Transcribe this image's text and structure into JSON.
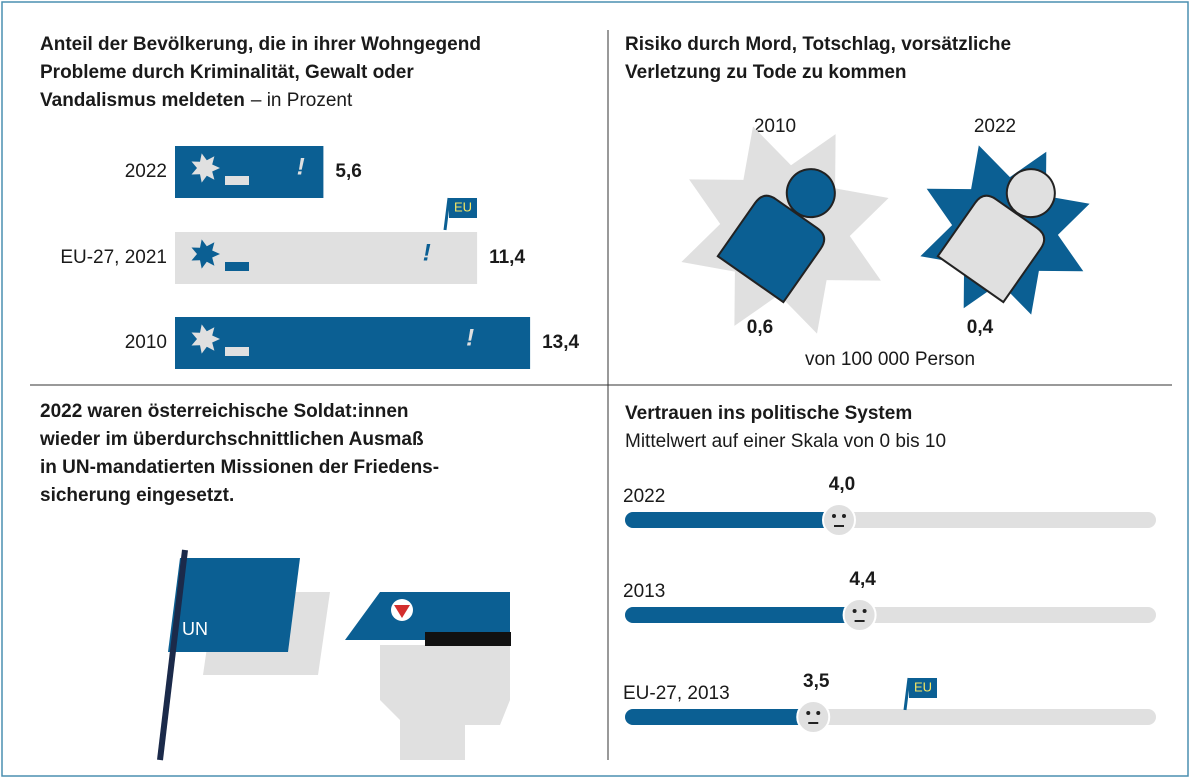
{
  "chart_data": [
    {
      "type": "bar",
      "title": [
        "Anteil der Bevölkerung, die in ihrer Wohngegend",
        "Probleme durch Kriminalität, Gewalt oder",
        "Vandalismus meldeten"
      ],
      "subtitle": "– in Prozent",
      "categories": [
        "2022",
        "EU-27, 2021",
        "2010"
      ],
      "values": [
        5.6,
        11.4,
        13.4
      ],
      "value_labels": [
        "5,6",
        "11,4",
        "13,4"
      ],
      "colors": [
        "#0b5f93",
        "#e0e0e0",
        "#0b5f93"
      ],
      "annotation": "EU"
    },
    {
      "type": "pictogram",
      "title": [
        "Risiko durch Mord, Totschlag, vorsätzliche",
        "Verletzung zu Tode zu kommen"
      ],
      "categories": [
        "2010",
        "2022"
      ],
      "values": [
        0.6,
        0.4
      ],
      "value_labels": [
        "0,6",
        "0,4"
      ],
      "colors": [
        "#e0e0e0",
        "#0b5f93"
      ],
      "note": "von 100 000 Person"
    },
    {
      "type": "slider",
      "title": "Vertrauen ins politische System",
      "subtitle": "Mittelwert auf einer Skala von 0 bis 10",
      "categories": [
        "2022",
        "2013",
        "EU-27, 2013"
      ],
      "values": [
        4.0,
        4.4,
        3.5
      ],
      "value_labels": [
        "4,0",
        "4,4",
        "3,5"
      ],
      "xlim": [
        0,
        10
      ],
      "color": "#0b5f93",
      "annotation": "EU"
    }
  ],
  "text_panel": {
    "lines": [
      "2022 waren österreichische Soldat:innen",
      "wieder im überdurchschnittlichen Ausmaß",
      "in UN-mandatierten Missionen der Friedens-",
      "sicherung eingesetzt."
    ],
    "flag_label": "UN"
  }
}
